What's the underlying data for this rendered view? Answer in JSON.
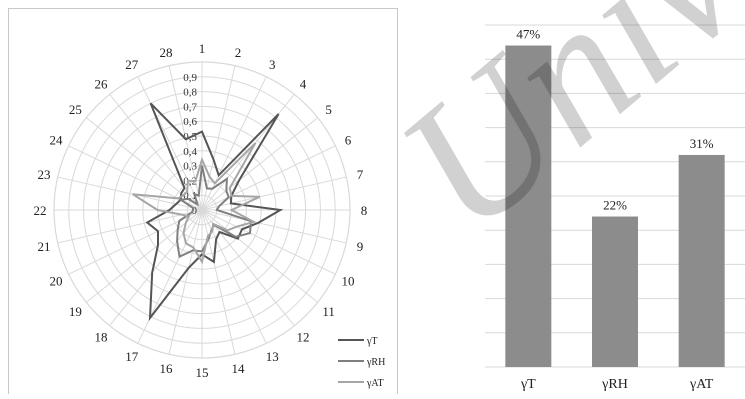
{
  "chart_data": [
    {
      "type": "radar",
      "categories": [
        "1",
        "2",
        "3",
        "4",
        "5",
        "6",
        "7",
        "8",
        "9",
        "10",
        "11",
        "12",
        "13",
        "14",
        "15",
        "16",
        "17",
        "18",
        "19",
        "20",
        "21",
        "22",
        "23",
        "24",
        "25",
        "26",
        "27",
        "28"
      ],
      "radial_ticks": [
        "0",
        "0,1",
        "0,2",
        "0,3",
        "0,4",
        "0,5",
        "0,6",
        "0,7",
        "0,8",
        "0,9"
      ],
      "rmax": 1.0,
      "grid": true,
      "legend_position": "bottom-right",
      "series": [
        {
          "name": "γT",
          "color": "#555555",
          "values": [
            0.53,
            0.35,
            0.26,
            0.83,
            0.32,
            0.22,
            0.2,
            0.53,
            0.39,
            0.3,
            0.31,
            0.19,
            0.22,
            0.36,
            0.3,
            0.4,
            0.81,
            0.54,
            0.38,
            0.33,
            0.38,
            0.22,
            0.18,
            0.16,
            0.18,
            0.19,
            0.8,
            0.49
          ]
        },
        {
          "name": "γRH",
          "color": "#7f7f7f",
          "values": [
            0.3,
            0.15,
            0.16,
            0.27,
            0.21,
            0.2,
            0.12,
            0.1,
            0.34,
            0.36,
            0.29,
            0.13,
            0.15,
            0.2,
            0.28,
            0.28,
            0.35,
            0.27,
            0.21,
            0.17,
            0.07,
            0.06,
            0.06,
            0.16,
            0.12,
            0.05,
            0.12,
            0.1
          ]
        },
        {
          "name": "γAT",
          "color": "#a6a6a6",
          "values": [
            0.34,
            0.23,
            0.2,
            0.58,
            0.24,
            0.22,
            0.4,
            0.2,
            0.36,
            0.26,
            0.22,
            0.12,
            0.16,
            0.18,
            0.35,
            0.26,
            0.25,
            0.2,
            0.14,
            0.1,
            0.14,
            0.3,
            0.48,
            0.18,
            0.16,
            0.16,
            0.22,
            0.2
          ]
        }
      ]
    },
    {
      "type": "bar",
      "categories": [
        "γT",
        "γRH",
        "γAT"
      ],
      "values": [
        47,
        22,
        31
      ],
      "labels": [
        "47%",
        "22%",
        "31%"
      ],
      "ylim": [
        0,
        50
      ],
      "grid": true,
      "color": "#8c8c8c"
    }
  ],
  "watermark": {
    "text": "Univers",
    "color": "#000000"
  }
}
